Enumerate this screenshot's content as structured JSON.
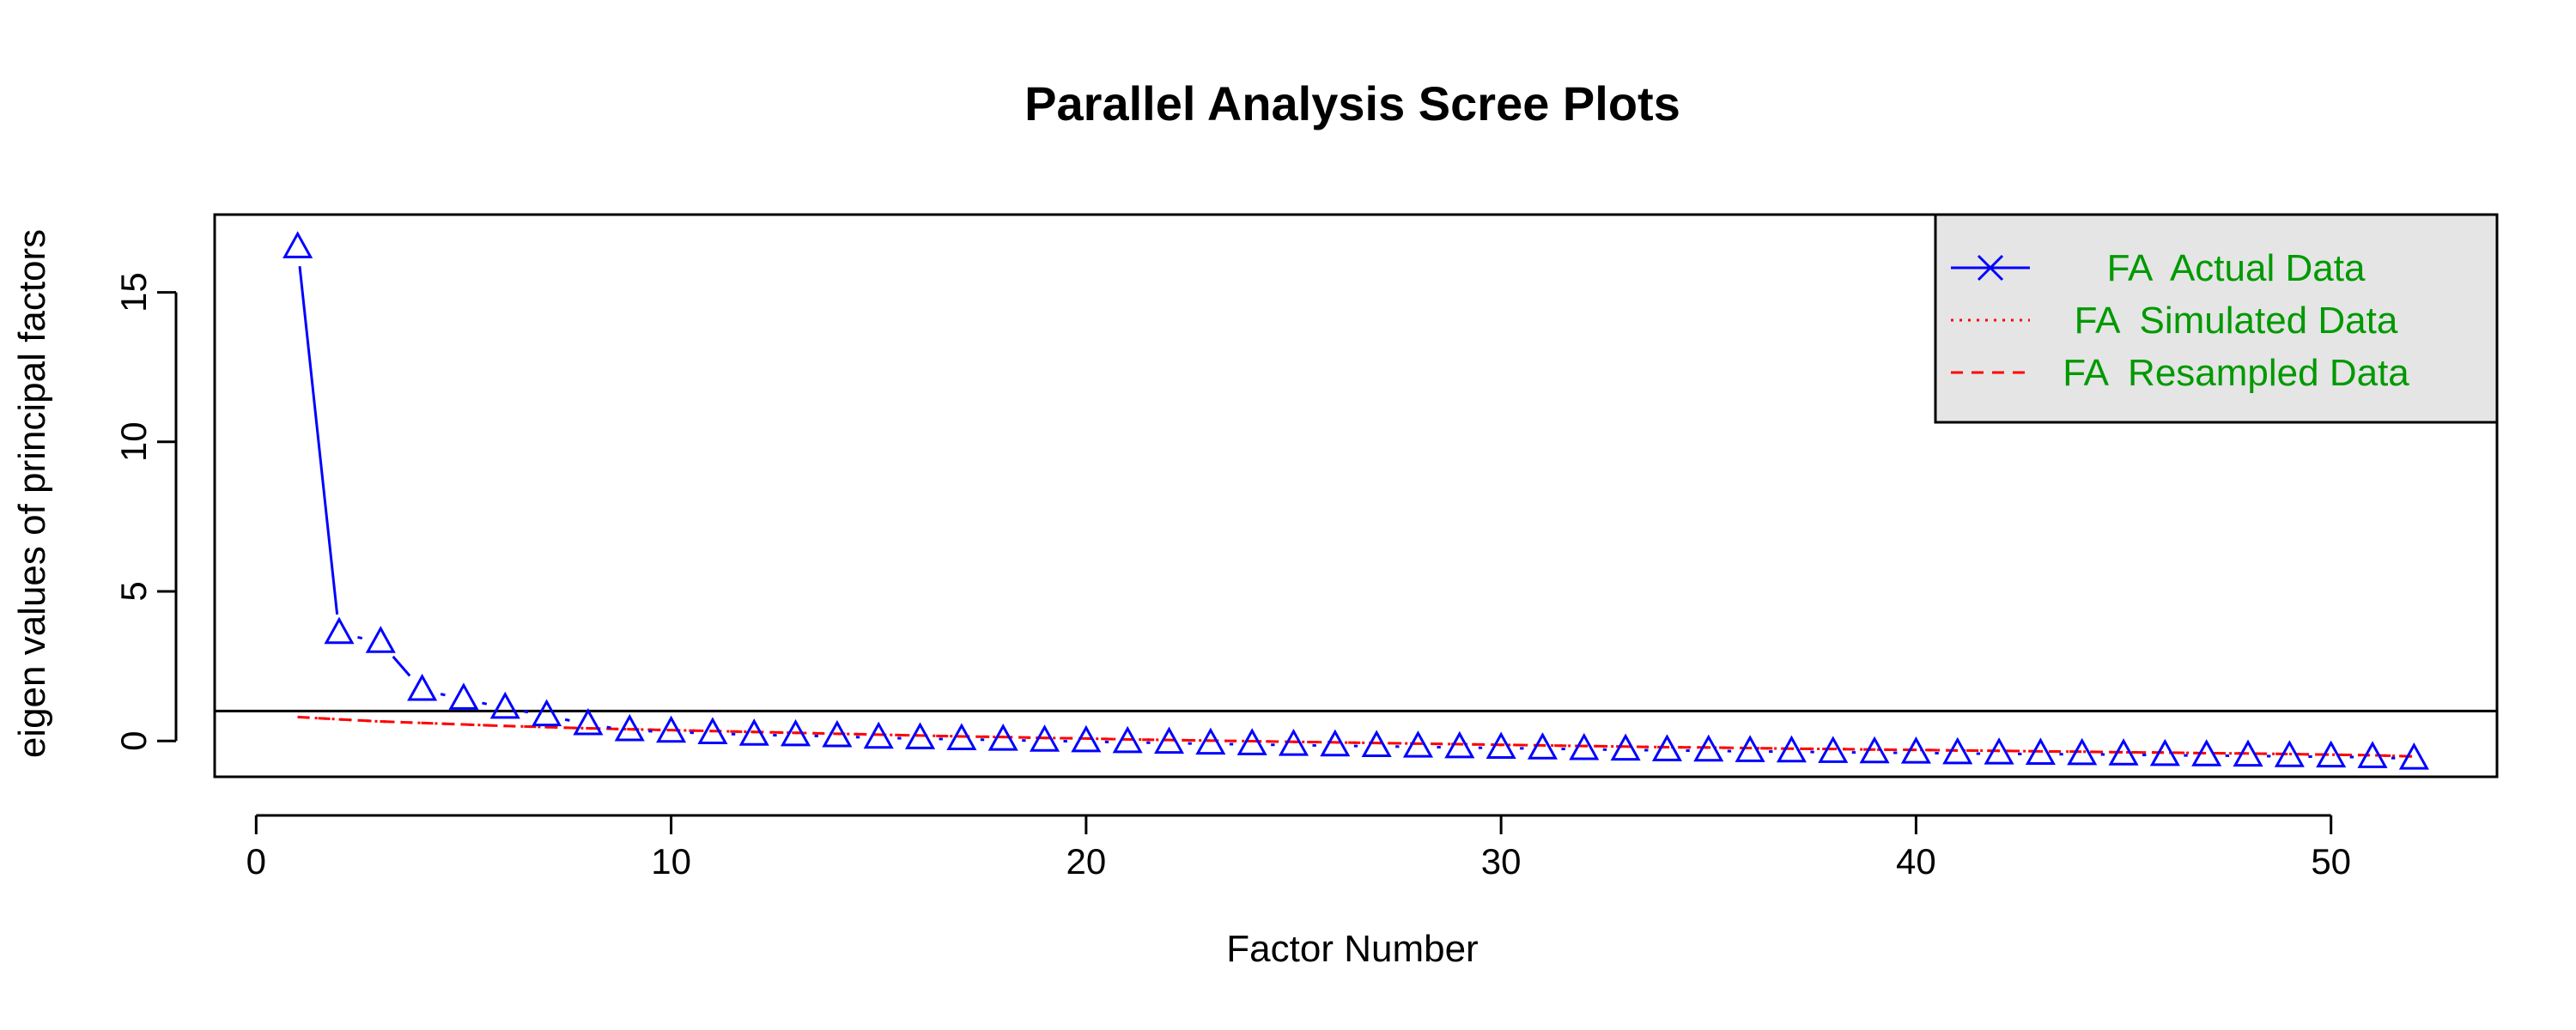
{
  "chart_data": {
    "type": "line",
    "title": "Parallel Analysis Scree Plots",
    "xlabel": "Factor Number",
    "ylabel": "eigen values of principal factors",
    "xlim": [
      -1,
      54
    ],
    "ylim": [
      -1.2,
      17.6
    ],
    "x_ticks": [
      0,
      10,
      20,
      30,
      40,
      50
    ],
    "y_ticks": [
      0,
      5,
      10,
      15
    ],
    "grid": false,
    "legend_position": "top-right",
    "reference_line": 1,
    "x": [
      1,
      2,
      3,
      4,
      5,
      6,
      7,
      8,
      9,
      10,
      11,
      12,
      13,
      14,
      15,
      16,
      17,
      18,
      19,
      20,
      21,
      22,
      23,
      24,
      25,
      26,
      27,
      28,
      29,
      30,
      31,
      32,
      33,
      34,
      35,
      36,
      37,
      38,
      39,
      40,
      41,
      42,
      43,
      44,
      45,
      46,
      47,
      48,
      49,
      50,
      51,
      52
    ],
    "series": [
      {
        "name": "FA  Actual Data",
        "color": "#0000ff",
        "line_style": "solid",
        "marker": "triangle",
        "values": [
          16.5,
          3.6,
          3.3,
          1.7,
          1.4,
          1.1,
          0.85,
          0.55,
          0.35,
          0.3,
          0.25,
          0.2,
          0.18,
          0.15,
          0.1,
          0.08,
          0.05,
          0.03,
          0.0,
          -0.02,
          -0.05,
          -0.07,
          -0.1,
          -0.12,
          -0.14,
          -0.16,
          -0.18,
          -0.2,
          -0.22,
          -0.24,
          -0.26,
          -0.28,
          -0.3,
          -0.32,
          -0.33,
          -0.35,
          -0.36,
          -0.38,
          -0.39,
          -0.4,
          -0.42,
          -0.43,
          -0.44,
          -0.45,
          -0.46,
          -0.48,
          -0.49,
          -0.5,
          -0.52,
          -0.53,
          -0.55,
          -0.6
        ]
      },
      {
        "name": "FA  Simulated Data",
        "color": "#ff0000",
        "line_style": "dotted",
        "values": [
          0.8,
          0.72,
          0.65,
          0.6,
          0.55,
          0.5,
          0.46,
          0.42,
          0.39,
          0.36,
          0.33,
          0.3,
          0.27,
          0.24,
          0.21,
          0.18,
          0.15,
          0.13,
          0.1,
          0.08,
          0.05,
          0.03,
          0.01,
          -0.01,
          -0.03,
          -0.05,
          -0.07,
          -0.09,
          -0.11,
          -0.13,
          -0.15,
          -0.17,
          -0.19,
          -0.21,
          -0.22,
          -0.24,
          -0.26,
          -0.27,
          -0.29,
          -0.3,
          -0.32,
          -0.33,
          -0.35,
          -0.36,
          -0.38,
          -0.39,
          -0.41,
          -0.42,
          -0.44,
          -0.46,
          -0.48,
          -0.52
        ]
      },
      {
        "name": "FA  Resampled Data",
        "color": "#ff0000",
        "line_style": "dashed",
        "values": [
          0.8,
          0.72,
          0.65,
          0.6,
          0.55,
          0.5,
          0.46,
          0.42,
          0.39,
          0.36,
          0.33,
          0.3,
          0.27,
          0.24,
          0.21,
          0.18,
          0.15,
          0.13,
          0.1,
          0.08,
          0.05,
          0.03,
          0.01,
          -0.01,
          -0.03,
          -0.05,
          -0.07,
          -0.09,
          -0.11,
          -0.13,
          -0.15,
          -0.17,
          -0.19,
          -0.21,
          -0.22,
          -0.24,
          -0.26,
          -0.27,
          -0.29,
          -0.3,
          -0.32,
          -0.33,
          -0.35,
          -0.36,
          -0.38,
          -0.39,
          -0.41,
          -0.42,
          -0.44,
          -0.46,
          -0.48,
          -0.52
        ]
      }
    ],
    "legend_text_color": "#009900",
    "legend_background": "#e5e5e5"
  }
}
